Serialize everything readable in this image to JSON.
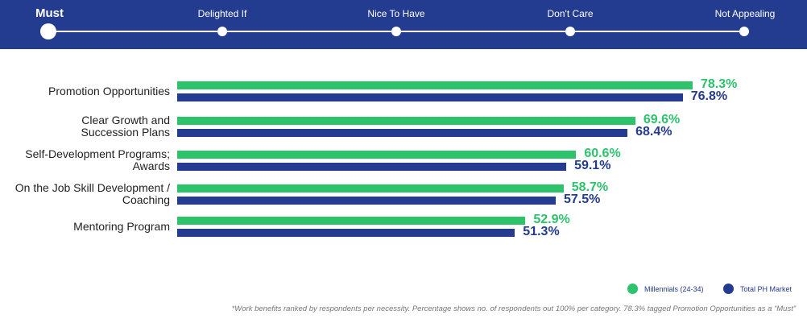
{
  "scale": {
    "steps": [
      "Must",
      "Delighted If",
      "Nice To Have",
      "Don't Care",
      "Not Appealing"
    ],
    "selected": "Must"
  },
  "colors": {
    "millennials": "#2cc36b",
    "total": "#233c8f",
    "banner": "#233c8f"
  },
  "chart_data": {
    "type": "bar",
    "orientation": "horizontal",
    "categories": [
      "Promotion Opportunities",
      "Clear Growth and Succession Plans",
      "Self-Development Programs; Awards",
      "On the Job Skill Development / Coaching",
      "Mentoring Program"
    ],
    "category_lines": [
      [
        "Promotion Opportunities"
      ],
      [
        "Clear Growth and",
        "Succession Plans"
      ],
      [
        "Self-Development Programs;",
        "Awards"
      ],
      [
        "On the Job Skill Development /",
        "Coaching"
      ],
      [
        "Mentoring Program"
      ]
    ],
    "series": [
      {
        "name": "Millennials (24-34)",
        "values": [
          78.3,
          69.6,
          60.6,
          58.7,
          52.9
        ],
        "labels": [
          "78.3%",
          "69.6%",
          "60.6%",
          "58.7%",
          "52.9%"
        ]
      },
      {
        "name": "Total PH Market",
        "values": [
          76.8,
          68.4,
          59.1,
          57.5,
          51.3
        ],
        "labels": [
          "76.8%",
          "68.4%",
          "59.1%",
          "57.5%",
          "51.3%"
        ]
      }
    ],
    "xlim": [
      0,
      100
    ],
    "grid": false,
    "legend_position": "bottom-right"
  },
  "footnote": "*Work benefits ranked by respondents per necessity. Percentage shows no. of respondents out 100% per category. 78.3% tagged Promotion Opportunities as a “Must”"
}
